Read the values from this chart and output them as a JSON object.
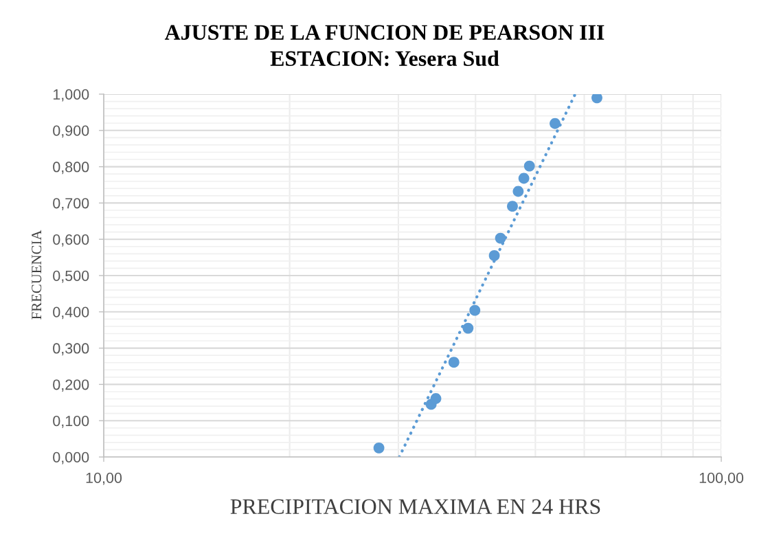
{
  "chart_data": {
    "type": "scatter",
    "title": "AJUSTE DE LA FUNCION DE PEARSON III",
    "subtitle": "ESTACION: Yesera Sud",
    "xlabel": "PRECIPITACION MAXIMA EN 24 HRS",
    "ylabel": "FRECUENCIA",
    "log": "x",
    "grid": true,
    "marker": "circle",
    "xlim": [
      10,
      100
    ],
    "ylim": [
      0,
      1
    ],
    "xticks": [
      {
        "value": 10,
        "label": "10,00"
      },
      {
        "value": 20,
        "label": null
      },
      {
        "value": 30,
        "label": null
      },
      {
        "value": 40,
        "label": null
      },
      {
        "value": 50,
        "label": null
      },
      {
        "value": 60,
        "label": null
      },
      {
        "value": 70,
        "label": null
      },
      {
        "value": 80,
        "label": null
      },
      {
        "value": 90,
        "label": null
      },
      {
        "value": 100,
        "label": "100,00"
      }
    ],
    "yticks": [
      {
        "value": 0,
        "label": "0,000"
      },
      {
        "value": 0.02,
        "label": null
      },
      {
        "value": 0.04,
        "label": null
      },
      {
        "value": 0.06,
        "label": null
      },
      {
        "value": 0.08,
        "label": null
      },
      {
        "value": 0.1,
        "label": "0,100"
      },
      {
        "value": 0.12,
        "label": null
      },
      {
        "value": 0.14,
        "label": null
      },
      {
        "value": 0.16,
        "label": null
      },
      {
        "value": 0.18,
        "label": null
      },
      {
        "value": 0.2,
        "label": "0,200"
      },
      {
        "value": 0.22,
        "label": null
      },
      {
        "value": 0.24,
        "label": null
      },
      {
        "value": 0.26,
        "label": null
      },
      {
        "value": 0.28,
        "label": null
      },
      {
        "value": 0.3,
        "label": "0,300"
      },
      {
        "value": 0.32,
        "label": null
      },
      {
        "value": 0.34,
        "label": null
      },
      {
        "value": 0.36,
        "label": null
      },
      {
        "value": 0.38,
        "label": null
      },
      {
        "value": 0.4,
        "label": "0,400"
      },
      {
        "value": 0.42,
        "label": null
      },
      {
        "value": 0.44,
        "label": null
      },
      {
        "value": 0.46,
        "label": null
      },
      {
        "value": 0.48,
        "label": null
      },
      {
        "value": 0.5,
        "label": "0,500"
      },
      {
        "value": 0.52,
        "label": null
      },
      {
        "value": 0.54,
        "label": null
      },
      {
        "value": 0.56,
        "label": null
      },
      {
        "value": 0.58,
        "label": null
      },
      {
        "value": 0.6,
        "label": "0,600"
      },
      {
        "value": 0.62,
        "label": null
      },
      {
        "value": 0.64,
        "label": null
      },
      {
        "value": 0.66,
        "label": null
      },
      {
        "value": 0.68,
        "label": null
      },
      {
        "value": 0.7,
        "label": "0,700"
      },
      {
        "value": 0.72,
        "label": null
      },
      {
        "value": 0.74,
        "label": null
      },
      {
        "value": 0.76,
        "label": null
      },
      {
        "value": 0.78,
        "label": null
      },
      {
        "value": 0.8,
        "label": "0,800"
      },
      {
        "value": 0.82,
        "label": null
      },
      {
        "value": 0.84,
        "label": null
      },
      {
        "value": 0.86,
        "label": null
      },
      {
        "value": 0.88,
        "label": null
      },
      {
        "value": 0.9,
        "label": "0,900"
      },
      {
        "value": 0.92,
        "label": null
      },
      {
        "value": 0.94,
        "label": null
      },
      {
        "value": 0.96,
        "label": null
      },
      {
        "value": 0.98,
        "label": null
      },
      {
        "value": 1,
        "label": "1,000"
      }
    ],
    "series": [
      {
        "color": "#5b9bd5",
        "x": [
          27.9,
          33.9,
          34.5,
          36.9,
          38.9,
          39.9,
          42.9,
          43.9,
          45.9,
          46.9,
          47.9,
          48.9,
          53.8,
          62.9
        ],
        "values": [
          0.025,
          0.145,
          0.161,
          0.261,
          0.355,
          0.404,
          0.555,
          0.603,
          0.691,
          0.732,
          0.768,
          0.802,
          0.919,
          0.99
        ]
      },
      {
        "type": "line",
        "color": "#5b9bd5",
        "line_style": "dotted",
        "marker": "none",
        "x": [
          30.1,
          58.0
        ],
        "values": [
          0,
          1
        ]
      }
    ]
  }
}
